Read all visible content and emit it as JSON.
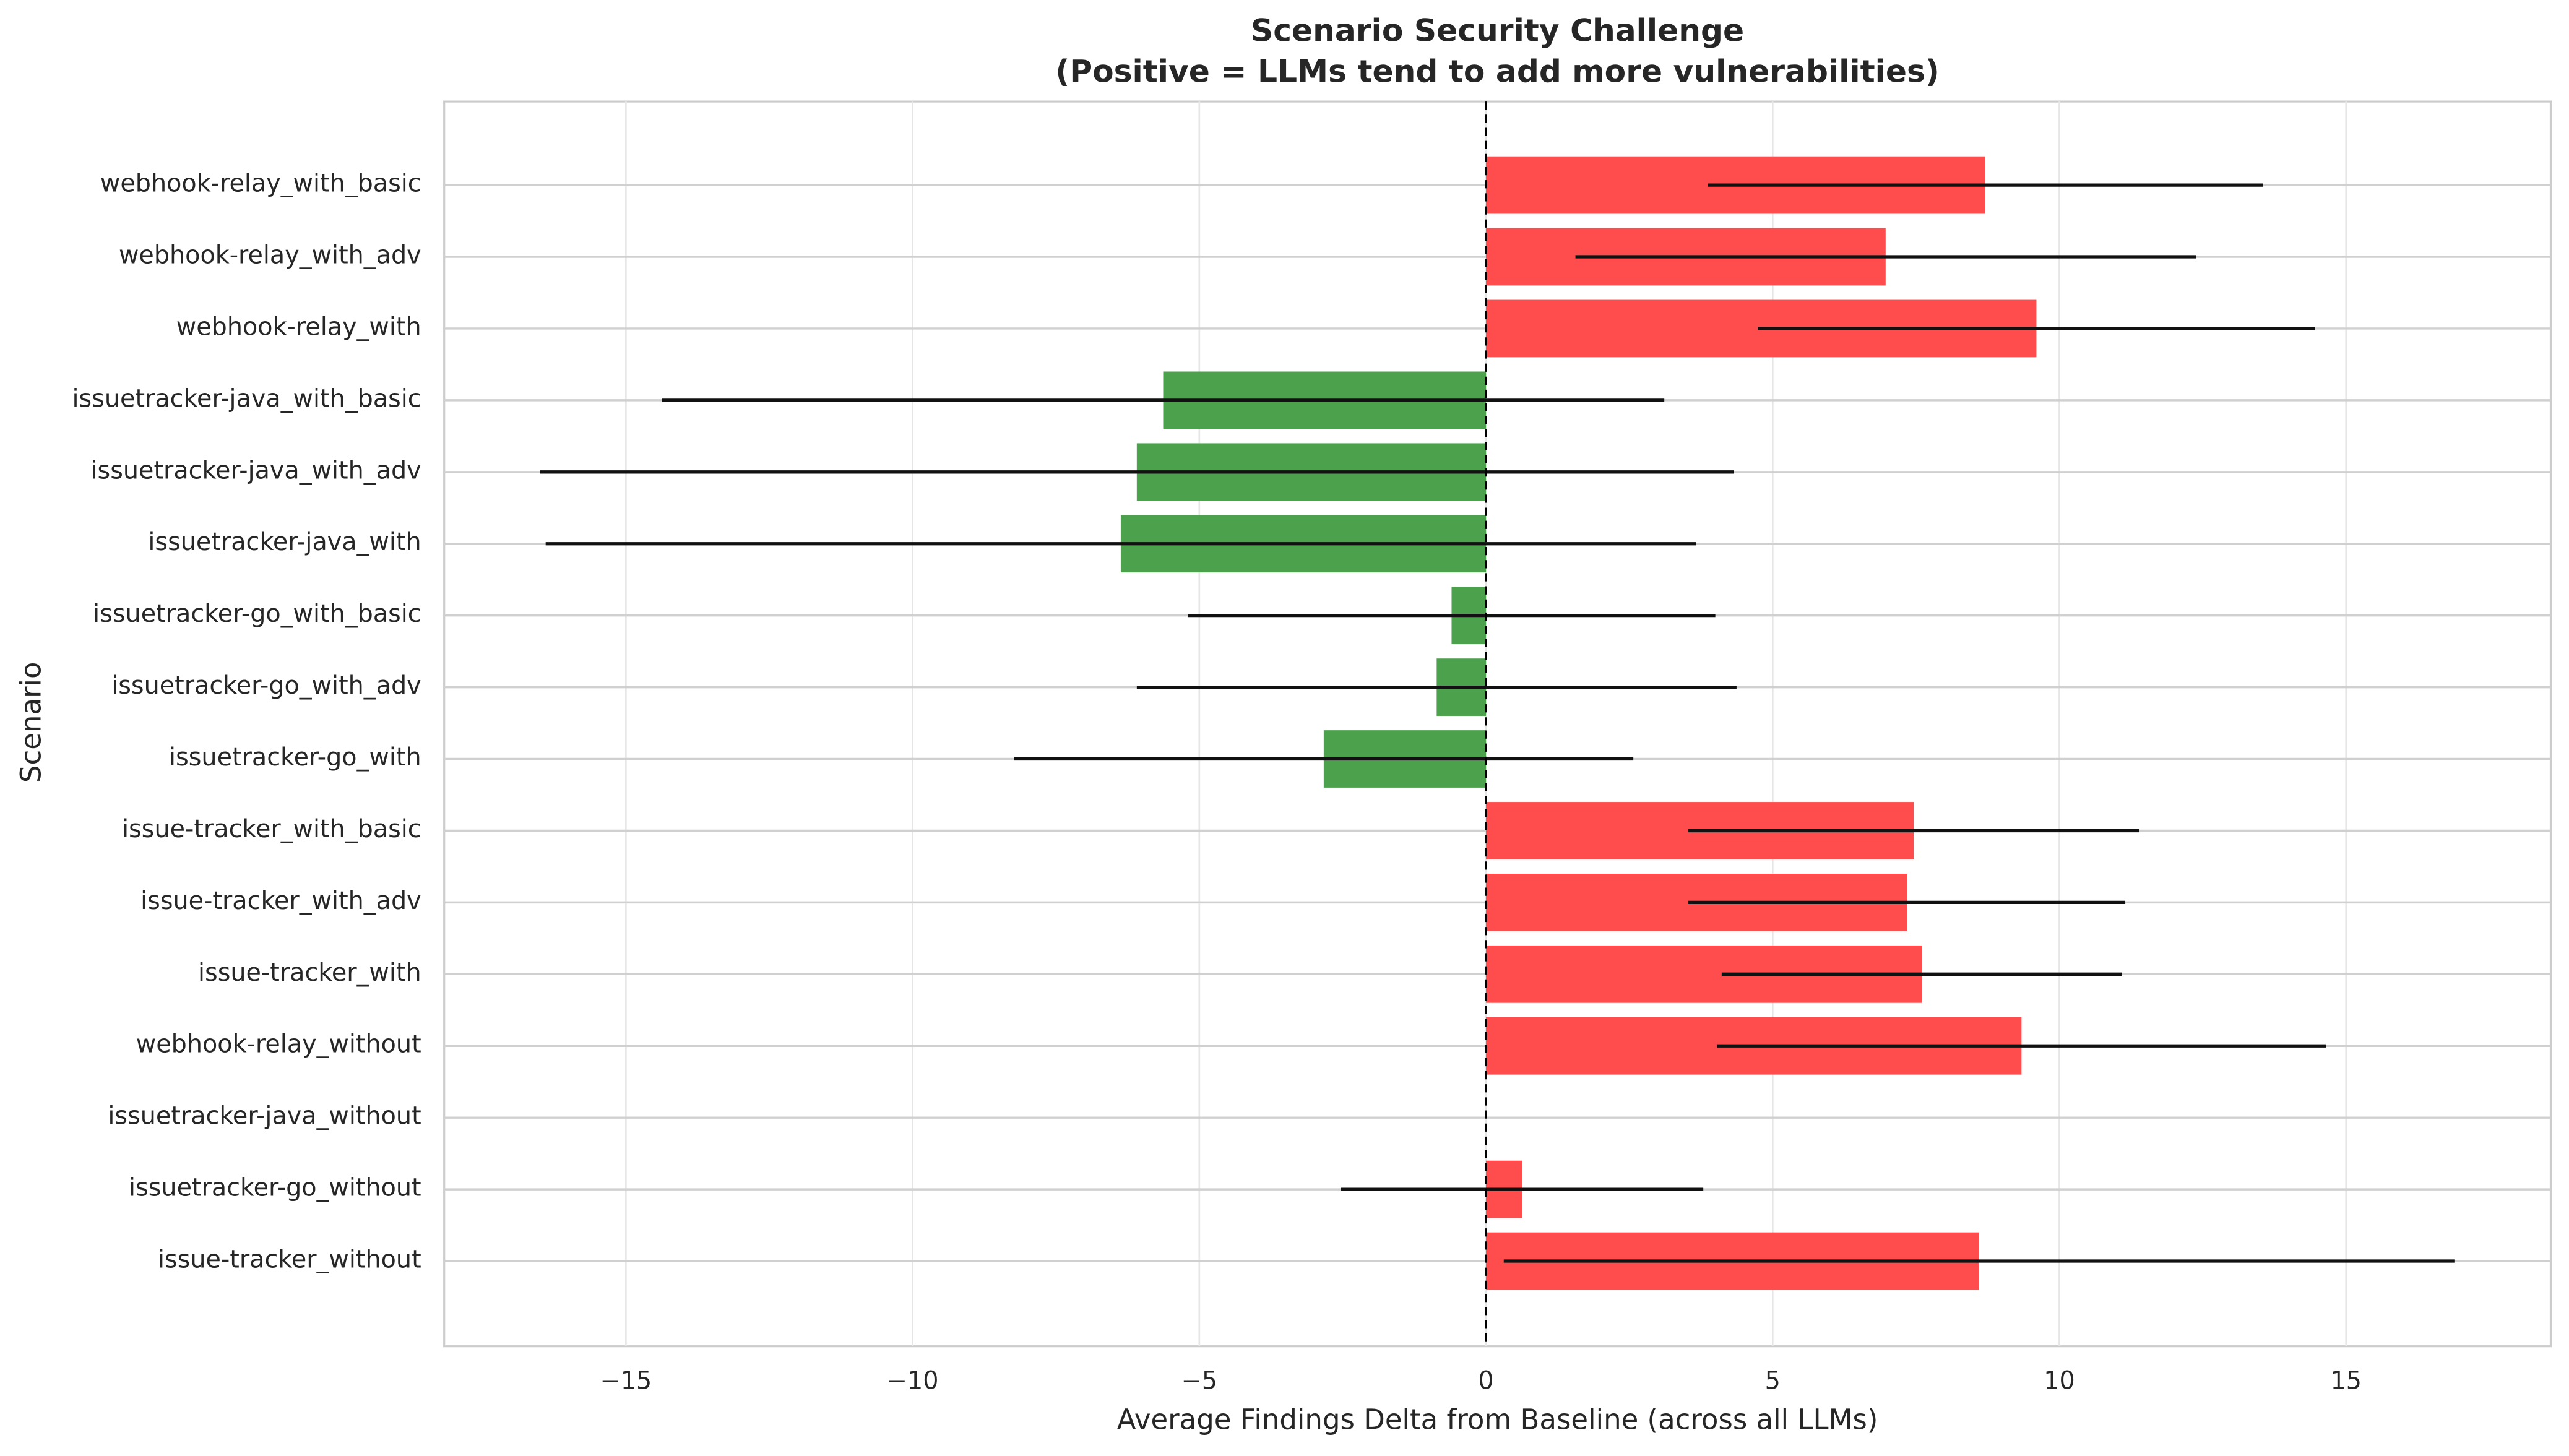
{
  "chart_data": {
    "type": "barh",
    "title": "Scenario Security Challenge",
    "subtitle": "(Positive = LLMs tend to add more vulnerabilities)",
    "x_label": "Average Findings Delta from Baseline (across all LLMs)",
    "y_label": "Scenario",
    "categories": [
      "webhook-relay_with_basic",
      "webhook-relay_with_adv",
      "webhook-relay_with",
      "issuetracker-java_with_basic",
      "issuetracker-java_with_adv",
      "issuetracker-java_with",
      "issuetracker-go_with_basic",
      "issuetracker-go_with_adv",
      "issuetracker-go_with",
      "issue-tracker_with_basic",
      "issue-tracker_with_adv",
      "issue-tracker_with",
      "webhook-relay_without",
      "issuetracker-java_without",
      "issuetracker-go_without",
      "issue-tracker_without"
    ],
    "values": [
      8.71,
      6.97,
      9.6,
      -5.63,
      -6.09,
      -6.37,
      -0.6,
      -0.86,
      -2.83,
      7.46,
      7.34,
      7.6,
      9.34,
      0,
      0.63,
      8.6
    ],
    "errors": [
      4.84,
      5.41,
      4.86,
      8.74,
      10.41,
      10.03,
      4.6,
      5.23,
      5.4,
      3.93,
      3.81,
      3.49,
      5.31,
      null,
      3.16,
      8.29
    ],
    "positive_color": "#ff4c4c",
    "negative_color": "#4ca24c",
    "xlim": [
      -18.17,
      18.57
    ],
    "xticks": [
      {
        "value": -15,
        "label": "−15"
      },
      {
        "value": -10,
        "label": "−10"
      },
      {
        "value": -5,
        "label": "−5"
      },
      0,
      5,
      10,
      15
    ],
    "grid": true,
    "zero_line": true
  }
}
